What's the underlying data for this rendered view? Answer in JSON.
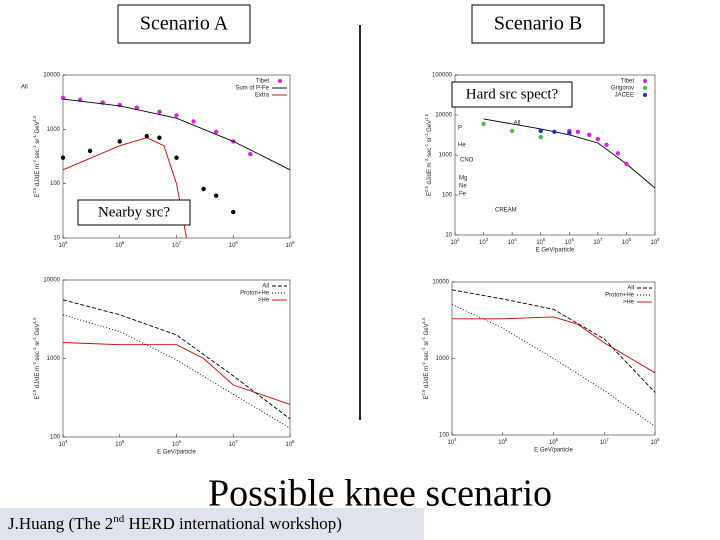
{
  "slide": {
    "scenario_a": "Scenario  A",
    "scenario_b": "Scenario  B",
    "title": "Possible knee scenario",
    "footer": [
      "J.Huang (The  2",
      "nd",
      "  HERD international workshop)"
    ],
    "notes": [
      "Nearby src?",
      "Hard src spect?"
    ]
  },
  "chart_data": [
    {
      "type": "line",
      "log_x": true,
      "log_y": true,
      "y_label": "E^2.5 dJ/dE m^-2 sec^-1 sr^-1 GeV^1.5",
      "xlim": [
        100000,
        1000000000
      ],
      "ylim": [
        10,
        10000
      ],
      "xticks": [
        {
          "value": 100000,
          "label": "10^5"
        },
        {
          "value": 1000000,
          "label": "10^6"
        },
        {
          "value": 10000000,
          "label": "10^7"
        },
        {
          "value": 100000000,
          "label": "10^8"
        },
        {
          "value": 1000000000,
          "label": "10^9"
        }
      ],
      "yticks": [
        10,
        100,
        1000,
        10000
      ],
      "series": [
        {
          "name": "Tibet",
          "color": "#e020e0",
          "marker": true,
          "in_legend": true,
          "x": [
            100000,
            200000,
            500000,
            1000000,
            2000000,
            5000000,
            10000000,
            20000000,
            50000000,
            100000000,
            200000000
          ],
          "values": [
            3800,
            3500,
            3100,
            2800,
            2500,
            2100,
            1800,
            1400,
            900,
            600,
            350
          ]
        },
        {
          "name": "Sum of P-Fe",
          "color": "#000000",
          "marker": false,
          "in_legend": true,
          "x": [
            100000,
            1000000,
            10000000,
            100000000,
            1000000000
          ],
          "values": [
            3600,
            2700,
            1600,
            600,
            180
          ]
        },
        {
          "name": "Extra",
          "color": "#d00000",
          "marker": false,
          "in_legend": true,
          "x": [
            100000,
            1000000,
            3000000,
            6000000,
            10000000,
            15000000
          ],
          "values": [
            180,
            500,
            700,
            500,
            100,
            10
          ]
        },
        {
          "name": "All",
          "color": "#000000",
          "marker": true,
          "in_legend": false,
          "x": [
            100000,
            300000,
            1000000,
            3000000,
            5000000,
            10000000,
            30000000,
            50000000,
            100000000
          ],
          "values": [
            300,
            400,
            600,
            750,
            700,
            300,
            80,
            60,
            30
          ]
        }
      ],
      "annotations": []
    },
    {
      "type": "line",
      "log_x": true,
      "log_y": true,
      "y_label": "E^2.5 dJ/dE m^-2 sec^-1 sr^-1 GeV^1.5",
      "x_label": "E GeV/particle",
      "xlim": [
        100,
        1000000000
      ],
      "ylim": [
        10,
        100000
      ],
      "xticks": [
        {
          "value": 100,
          "label": "10^2"
        },
        {
          "value": 1000,
          "label": "10^3"
        },
        {
          "value": 10000,
          "label": "10^4"
        },
        {
          "value": 100000,
          "label": "10^5"
        },
        {
          "value": 1000000,
          "label": "10^6"
        },
        {
          "value": 10000000,
          "label": "10^7"
        },
        {
          "value": 100000000,
          "label": "10^8"
        },
        {
          "value": 1000000000,
          "label": "10^9"
        }
      ],
      "yticks": [
        10,
        100,
        1000,
        10000,
        100000
      ],
      "series": [
        {
          "name": "All",
          "color": "#000000",
          "marker": false,
          "in_legend": false,
          "x": [
            1000,
            10000,
            100000,
            1000000,
            10000000,
            100000000,
            1000000000
          ],
          "values": [
            8000,
            6000,
            4500,
            3200,
            2000,
            600,
            150
          ]
        },
        {
          "name": "Tibet",
          "color": "#e020e0",
          "marker": true,
          "in_legend": true,
          "x": [
            1000000,
            2000000,
            5000000,
            10000000,
            20000000,
            50000000,
            100000000
          ],
          "values": [
            4000,
            3800,
            3200,
            2500,
            1800,
            1100,
            600
          ]
        },
        {
          "name": "Grigorov",
          "color": "#40c040",
          "marker": true,
          "in_legend": true,
          "x": [
            1000,
            10000,
            100000
          ],
          "values": [
            6000,
            4000,
            2800
          ]
        },
        {
          "name": "JACEE",
          "color": "#2030c0",
          "marker": true,
          "in_legend": true,
          "x": [
            100000,
            300000,
            1000000
          ],
          "values": [
            4000,
            3800,
            3500
          ]
        }
      ],
      "annotations": [
        "P",
        "He",
        "CNO",
        "Mg",
        "Ne",
        "Fe",
        "CREAM"
      ]
    },
    {
      "type": "line",
      "log_x": true,
      "log_y": true,
      "y_label": "E^2.5 dJ/dE m^-2 sec^-1 sr^-1 GeV^1.5",
      "x_label": "E GeV/particle",
      "xlim": [
        10000,
        100000000
      ],
      "ylim": [
        100,
        10000
      ],
      "xticks": [
        {
          "value": 10000,
          "label": "10^4"
        },
        {
          "value": 100000,
          "label": "10^5"
        },
        {
          "value": 1000000,
          "label": "10^6"
        },
        {
          "value": 10000000,
          "label": "10^7"
        },
        {
          "value": 100000000,
          "label": "10^8"
        }
      ],
      "yticks": [
        100,
        1000,
        10000
      ],
      "series": [
        {
          "name": "All",
          "color": "#000000",
          "dash": "4 2",
          "marker": false,
          "in_legend": true,
          "x": [
            10000,
            100000,
            1000000,
            10000000,
            100000000
          ],
          "values": [
            5600,
            3600,
            2000,
            600,
            170
          ]
        },
        {
          "name": "Proton+He",
          "color": "#000000",
          "dash": "1 2",
          "marker": false,
          "in_legend": true,
          "x": [
            10000,
            100000,
            1000000,
            10000000,
            100000000
          ],
          "values": [
            3600,
            2200,
            960,
            350,
            130
          ]
        },
        {
          "name": ">He",
          "color": "#d00000",
          "marker": false,
          "in_legend": true,
          "x": [
            10000,
            100000,
            1000000,
            3000000,
            10000000,
            100000000
          ],
          "values": [
            1600,
            1500,
            1500,
            1000,
            460,
            260
          ]
        }
      ],
      "annotations": []
    },
    {
      "type": "line",
      "log_x": true,
      "log_y": true,
      "y_label": "E^2.5 dJ/dE m^-2 sec^-1 sr^-1 GeV^1.5",
      "x_label": "E GeV/particle",
      "xlim": [
        10000,
        100000000
      ],
      "ylim": [
        100,
        10000
      ],
      "xticks": [
        {
          "value": 10000,
          "label": "10^4"
        },
        {
          "value": 100000,
          "label": "10^5"
        },
        {
          "value": 1000000,
          "label": "10^6"
        },
        {
          "value": 10000000,
          "label": "10^7"
        },
        {
          "value": 100000000,
          "label": "10^8"
        }
      ],
      "yticks": [
        100,
        1000,
        10000
      ],
      "series": [
        {
          "name": "All",
          "color": "#000000",
          "dash": "4 2",
          "marker": false,
          "in_legend": true,
          "x": [
            10000,
            100000,
            1000000,
            10000000,
            100000000
          ],
          "values": [
            7900,
            6000,
            4400,
            1800,
            360
          ]
        },
        {
          "name": "Proton+He",
          "color": "#000000",
          "dash": "1 2",
          "marker": false,
          "in_legend": true,
          "x": [
            10000,
            100000,
            1000000,
            10000000,
            100000000
          ],
          "values": [
            5100,
            2500,
            1000,
            380,
            130
          ]
        },
        {
          "name": ">He",
          "color": "#d00000",
          "marker": false,
          "in_legend": true,
          "x": [
            10000,
            100000,
            1000000,
            3000000,
            10000000,
            100000000
          ],
          "values": [
            3300,
            3300,
            3500,
            2800,
            1600,
            650
          ]
        }
      ],
      "annotations": []
    }
  ]
}
